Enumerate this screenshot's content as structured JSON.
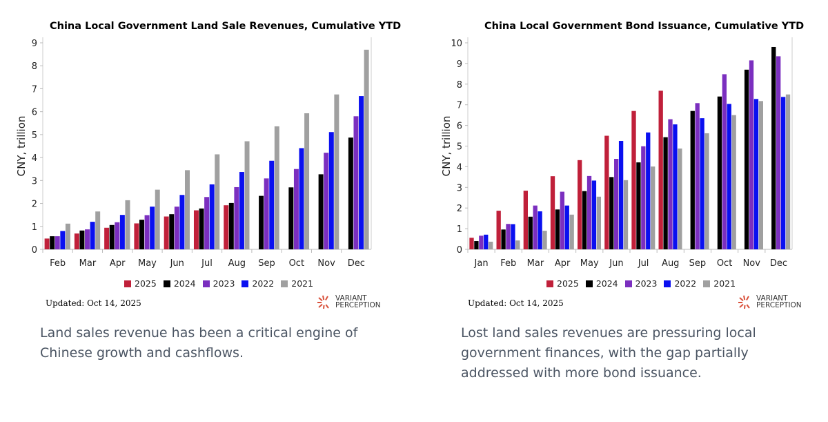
{
  "colors": {
    "2025": "#c0203a",
    "2024": "#000000",
    "2023": "#7b2fbf",
    "2022": "#0a10f0",
    "2021": "#a0a0a0"
  },
  "chart_data": [
    {
      "type": "bar",
      "title": "China Local Government Land Sale Revenues, Cumulative YTD",
      "xlabel": "",
      "ylabel": "CNY, trillion",
      "ylim": [
        0,
        9
      ],
      "yticks": [
        "0",
        "1",
        "2",
        "3",
        "4",
        "5",
        "6",
        "7",
        "8",
        "9"
      ],
      "categories": [
        "Feb",
        "Mar",
        "Apr",
        "May",
        "Jun",
        "Jul",
        "Aug",
        "Sep",
        "Oct",
        "Nov",
        "Dec"
      ],
      "legend_position": "bottom",
      "series": [
        {
          "name": "2025",
          "values": [
            0.47,
            0.69,
            0.94,
            1.13,
            1.43,
            1.7,
            1.92,
            null,
            null,
            null,
            null
          ]
        },
        {
          "name": "2024",
          "values": [
            0.57,
            0.82,
            1.06,
            1.29,
            1.53,
            1.78,
            2.02,
            2.33,
            2.7,
            3.27,
            4.87
          ]
        },
        {
          "name": "2023",
          "values": [
            0.57,
            0.87,
            1.18,
            1.49,
            1.86,
            2.28,
            2.71,
            3.09,
            3.5,
            4.21,
            5.8
          ]
        },
        {
          "name": "2022",
          "values": [
            0.8,
            1.2,
            1.5,
            1.86,
            2.37,
            2.83,
            3.37,
            3.86,
            4.41,
            5.11,
            6.68
          ]
        },
        {
          "name": "2021",
          "values": [
            1.12,
            1.65,
            2.14,
            2.6,
            3.45,
            4.14,
            4.71,
            5.36,
            5.93,
            6.75,
            8.7
          ]
        }
      ]
    },
    {
      "type": "bar",
      "title": "China Local Government Bond Issuance, Cumulative YTD",
      "xlabel": "",
      "ylabel": "CNY, trillion",
      "ylim": [
        0,
        10
      ],
      "yticks": [
        "0",
        "1",
        "2",
        "3",
        "4",
        "5",
        "6",
        "7",
        "8",
        "9",
        "10"
      ],
      "categories": [
        "Jan",
        "Feb",
        "Mar",
        "Apr",
        "May",
        "Jun",
        "Jul",
        "Aug",
        "Sep",
        "Oct",
        "Nov",
        "Dec"
      ],
      "legend_position": "bottom",
      "series": [
        {
          "name": "2025",
          "values": [
            0.56,
            1.87,
            2.84,
            3.54,
            4.32,
            5.5,
            6.7,
            7.68,
            null,
            null,
            null,
            null
          ]
        },
        {
          "name": "2024",
          "values": [
            0.4,
            0.96,
            1.58,
            1.93,
            2.82,
            3.5,
            4.21,
            5.43,
            6.7,
            7.4,
            8.7,
            9.8
          ]
        },
        {
          "name": "2023",
          "values": [
            0.66,
            1.23,
            2.12,
            2.79,
            3.55,
            4.38,
            4.99,
            6.3,
            7.08,
            8.48,
            9.15,
            9.35
          ]
        },
        {
          "name": "2022",
          "values": [
            0.71,
            1.22,
            1.84,
            2.12,
            3.33,
            5.25,
            5.66,
            6.05,
            6.35,
            7.04,
            7.28,
            7.38
          ]
        },
        {
          "name": "2021",
          "values": [
            0.37,
            0.43,
            0.9,
            1.68,
            2.55,
            3.35,
            4.01,
            4.88,
            5.62,
            6.5,
            7.18,
            7.5
          ]
        }
      ]
    }
  ],
  "panels": [
    {
      "updated": "Updated: Oct 14, 2025",
      "logo_line1": "VARIANT",
      "logo_line2": "PERCEPTION",
      "caption": "Land sales revenue has been a critical engine of Chinese growth and cashflows."
    },
    {
      "updated": "Updated: Oct 14, 2025",
      "logo_line1": "VARIANT",
      "logo_line2": "PERCEPTION",
      "caption": "Lost land sales revenues are pressuring local government finances, with the gap partially addressed with more bond issuance."
    }
  ]
}
